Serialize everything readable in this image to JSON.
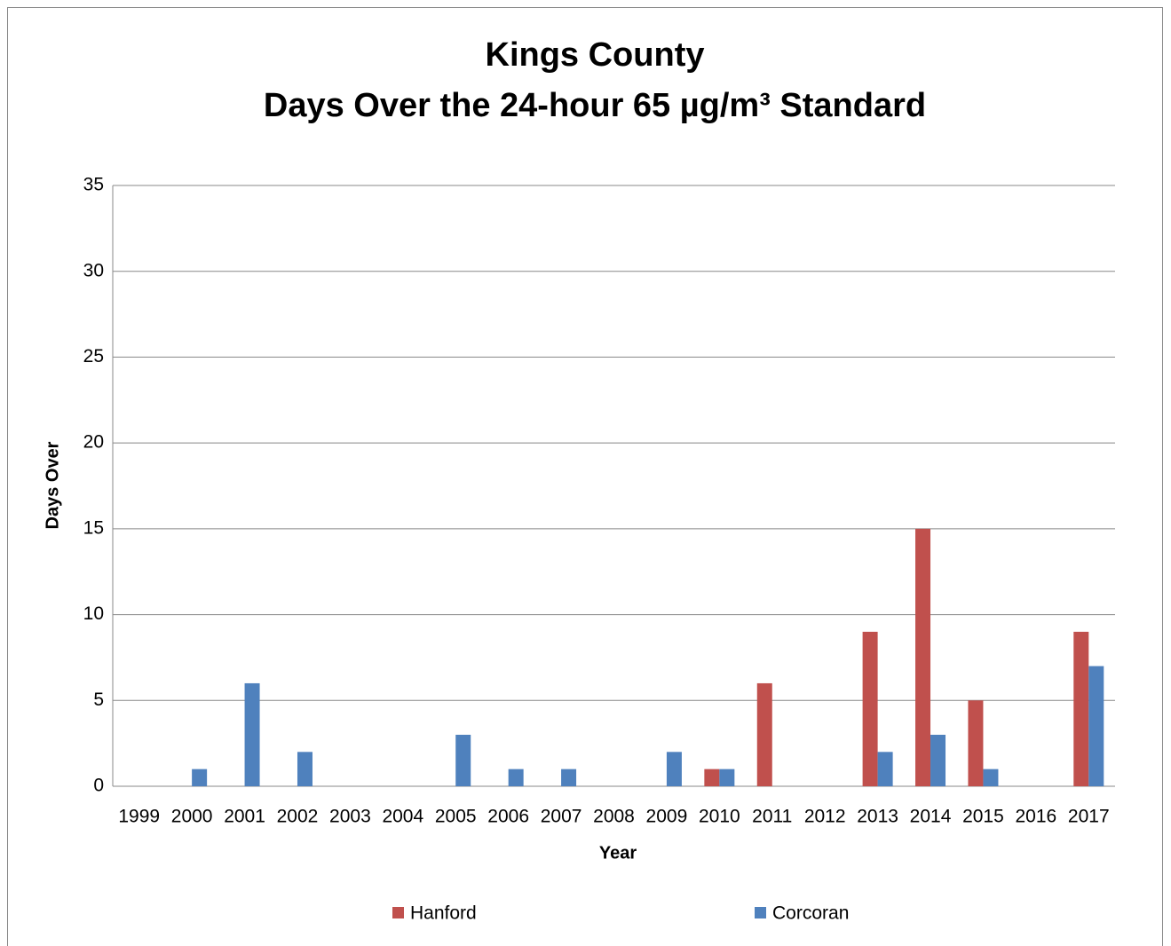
{
  "chart_data": {
    "type": "bar",
    "title": "Kings County",
    "subtitle": "Days Over the 24-hour 65 µg/m³ Standard",
    "x_label": "Year",
    "y_label": "Days Over",
    "categories": [
      "1999",
      "2000",
      "2001",
      "2002",
      "2003",
      "2004",
      "2005",
      "2006",
      "2007",
      "2008",
      "2009",
      "2010",
      "2011",
      "2012",
      "2013",
      "2014",
      "2015",
      "2016",
      "2017"
    ],
    "series": [
      {
        "name": "Hanford",
        "color": "#c0504d",
        "values": [
          0,
          0,
          0,
          0,
          0,
          0,
          0,
          0,
          0,
          0,
          0,
          1,
          6,
          0,
          9,
          15,
          5,
          0,
          9
        ]
      },
      {
        "name": "Corcoran",
        "color": "#4f81bd",
        "values": [
          0,
          1,
          6,
          2,
          0,
          0,
          3,
          1,
          1,
          0,
          2,
          1,
          0,
          0,
          2,
          3,
          1,
          0,
          7
        ]
      }
    ],
    "ylim": [
      0,
      35
    ],
    "yticks": [
      0,
      5,
      10,
      15,
      20,
      25,
      30,
      35
    ],
    "grid": true,
    "legend": "bottom"
  }
}
